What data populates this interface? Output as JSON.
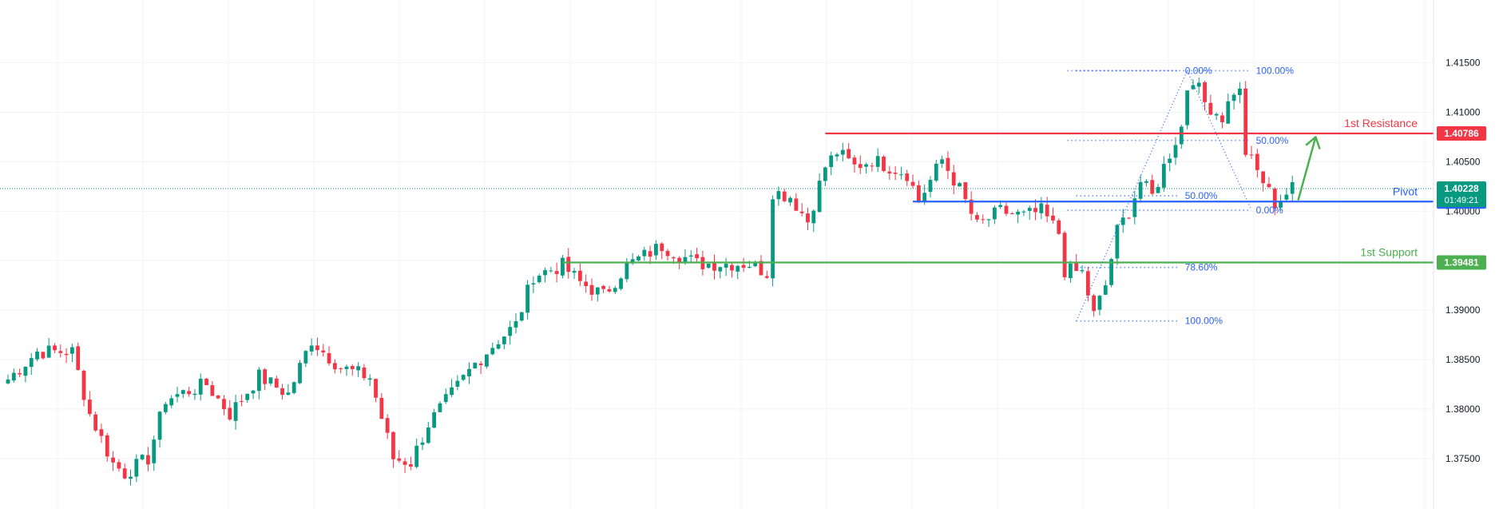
{
  "chart_data": {
    "type": "candlestick",
    "y_axis": {
      "position": "right",
      "ticks": [
        "1.41500",
        "1.41000",
        "1.40500",
        "1.40000",
        "1.39500",
        "1.39000",
        "1.38500",
        "1.38000",
        "1.37500"
      ],
      "tick_values": [
        1.415,
        1.41,
        1.405,
        1.4,
        1.395,
        1.39,
        1.385,
        1.38,
        1.375
      ],
      "range": [
        1.3703,
        1.4228
      ]
    },
    "grid": true,
    "current_price": {
      "value": 1.40228,
      "label": "1.40228",
      "countdown": "01:49:21",
      "color": "#089981"
    },
    "levels": [
      {
        "name": "1st Resistance",
        "value": 1.40786,
        "label": "1.40786",
        "color": "#f23645",
        "start_index": 140
      },
      {
        "name": "Pivot",
        "value": 1.40097,
        "label": "1.40097",
        "color": "#2962ff",
        "start_index": 155
      },
      {
        "name": "1st Support",
        "value": 1.39481,
        "label": "1.39481",
        "color": "#4caf50",
        "start_index": 95
      }
    ],
    "fibonacci": [
      {
        "from": {
          "index": 183,
          "price": 1.3889
        },
        "to": {
          "index": 202,
          "price": 1.4142
        },
        "lines": [
          {
            "label": "100.00%",
            "price": 1.3889
          },
          {
            "label": "78.60%",
            "price": 1.39431
          },
          {
            "label": "50.00%",
            "price": 1.40155
          },
          {
            "label": "0.00%",
            "price": 1.4142
          }
        ]
      },
      {
        "from": {
          "index": 202,
          "price": 1.4142
        },
        "to": {
          "index": 213,
          "price": 1.4001
        },
        "lines": [
          {
            "label": "100.00%",
            "price": 1.4142
          },
          {
            "label": "50.00%",
            "price": 1.40715
          },
          {
            "label": "0.00%",
            "price": 1.4001
          }
        ]
      }
    ],
    "projection_arrow": {
      "from_index": 221,
      "from_price": 1.4011,
      "to_index": 224,
      "to_price": 1.4075,
      "color": "#4caf50"
    },
    "series": [
      {
        "anchors": [
          [
            0,
            1.383
          ],
          [
            5,
            1.3858
          ],
          [
            11,
            1.3858
          ],
          [
            14,
            1.3795
          ],
          [
            18,
            1.3745
          ],
          [
            20,
            1.3735
          ],
          [
            24,
            1.375
          ],
          [
            27,
            1.381
          ],
          [
            34,
            1.3825
          ],
          [
            38,
            1.3795
          ],
          [
            43,
            1.3833
          ],
          [
            48,
            1.3815
          ],
          [
            52,
            1.387
          ],
          [
            54,
            1.3858
          ],
          [
            57,
            1.3842
          ],
          [
            62,
            1.3832
          ],
          [
            66,
            1.375
          ],
          [
            69,
            1.3746
          ],
          [
            72,
            1.3785
          ],
          [
            76,
            1.3815
          ],
          [
            80,
            1.3846
          ],
          [
            84,
            1.387
          ],
          [
            87,
            1.3885
          ],
          [
            90,
            1.3935
          ],
          [
            95,
            1.3945
          ],
          [
            98,
            1.3928
          ],
          [
            102,
            1.3915
          ],
          [
            106,
            1.3945
          ],
          [
            112,
            1.3965
          ],
          [
            118,
            1.3947
          ],
          [
            123,
            1.3947
          ],
          [
            127,
            1.3947
          ],
          [
            130,
            1.3938
          ],
          [
            131,
            1.402
          ],
          [
            134,
            1.4015
          ],
          [
            137,
            1.399
          ],
          [
            140,
            1.4045
          ],
          [
            142,
            1.406
          ],
          [
            145,
            1.4045
          ],
          [
            148,
            1.4052
          ],
          [
            151,
            1.4045
          ],
          [
            154,
            1.4038
          ],
          [
            156,
            1.401
          ],
          [
            160,
            1.4052
          ],
          [
            163,
            1.4022
          ],
          [
            166,
            1.3985
          ],
          [
            170,
            1.4
          ],
          [
            174,
            1.3995
          ],
          [
            177,
            1.4
          ],
          [
            180,
            1.3978
          ],
          [
            181,
            1.394
          ],
          [
            184,
            1.3938
          ],
          [
            186,
            1.3895
          ],
          [
            188,
            1.3925
          ],
          [
            190,
            1.398
          ],
          [
            192,
            1.4
          ],
          [
            194,
            1.403
          ],
          [
            196,
            1.4015
          ],
          [
            198,
            1.4045
          ],
          [
            201,
            1.4085
          ],
          [
            202,
            1.4125
          ],
          [
            203,
            1.4135
          ],
          [
            205,
            1.411
          ],
          [
            208,
            1.4095
          ],
          [
            210,
            1.4122
          ],
          [
            211,
            1.412
          ],
          [
            212,
            1.406
          ],
          [
            215,
            1.403
          ],
          [
            217,
            1.4008
          ],
          [
            220,
            1.4023
          ]
        ]
      }
    ]
  }
}
